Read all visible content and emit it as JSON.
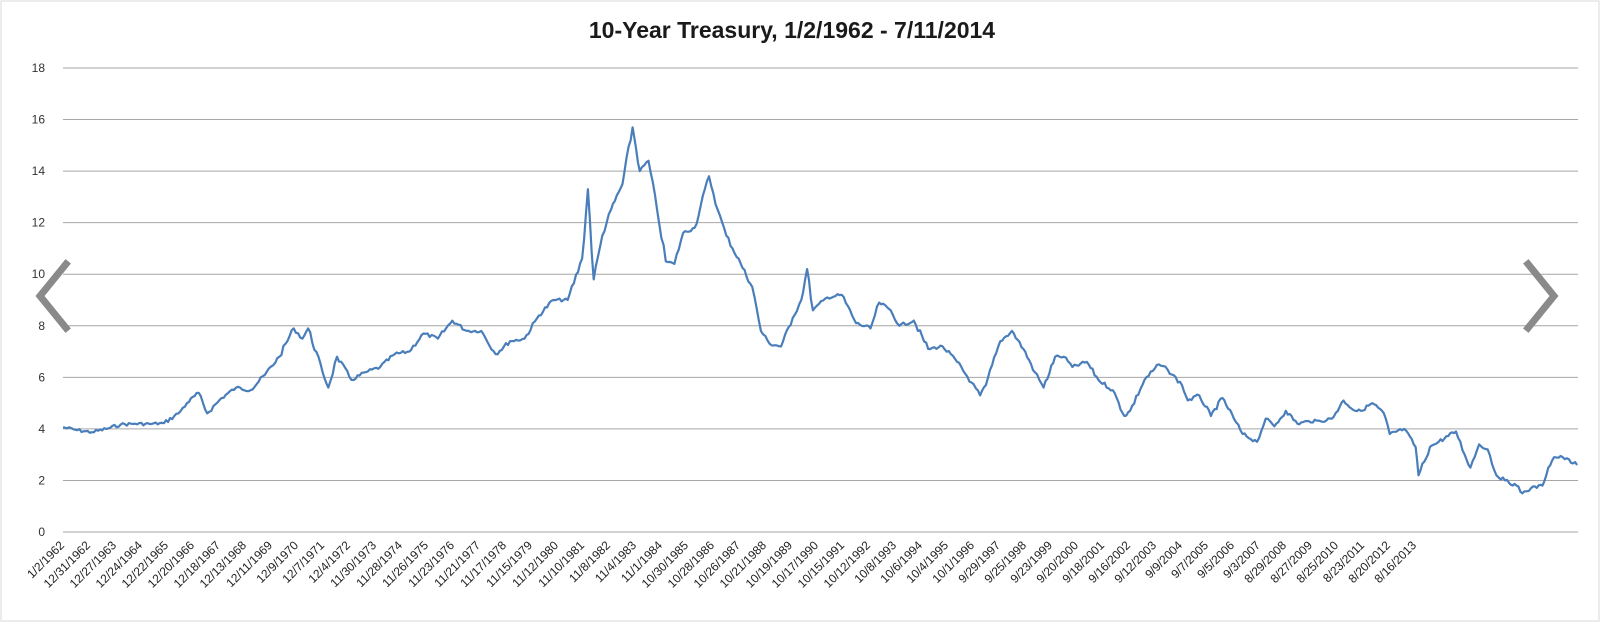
{
  "chart_data": {
    "type": "line",
    "title": "10-Year Treasury, 1/2/1962 - 7/11/2014",
    "xlabel": "",
    "ylabel": "",
    "ylim": [
      0,
      18
    ],
    "yticks": [
      0,
      2,
      4,
      6,
      8,
      10,
      12,
      14,
      16,
      18
    ],
    "grid": true,
    "legend": "none",
    "x_tick_labels": [
      "1/2/1962",
      "12/31/1962",
      "12/27/1963",
      "12/24/1964",
      "12/22/1965",
      "12/20/1966",
      "12/18/1967",
      "12/13/1968",
      "12/11/1969",
      "12/9/1970",
      "12/7/1971",
      "12/4/1972",
      "11/30/1973",
      "11/28/1974",
      "11/26/1975",
      "11/23/1976",
      "11/21/1977",
      "11/17/1978",
      "11/15/1979",
      "11/12/1980",
      "11/10/1981",
      "11/8/1982",
      "11/4/1983",
      "11/1/1984",
      "10/30/1985",
      "10/28/1986",
      "10/26/1987",
      "10/21/1988",
      "10/19/1989",
      "10/17/1990",
      "10/15/1991",
      "10/12/1992",
      "10/8/1993",
      "10/6/1994",
      "10/4/1995",
      "10/1/1996",
      "9/29/1997",
      "9/25/1998",
      "9/23/1999",
      "9/20/2000",
      "9/18/2001",
      "9/16/2002",
      "9/12/2003",
      "9/9/2004",
      "9/7/2005",
      "9/5/2006",
      "9/3/2007",
      "8/29/2008",
      "8/27/2009",
      "8/25/2010",
      "8/23/2011",
      "8/20/2012",
      "8/16/2013"
    ],
    "series": [
      {
        "color": "#4a7ebb",
        "points": [
          [
            "1962.0",
            4.06
          ],
          [
            "1962.5",
            3.95
          ],
          [
            "1963.0",
            3.87
          ],
          [
            "1963.5",
            4.0
          ],
          [
            "1964.0",
            4.17
          ],
          [
            "1964.5",
            4.2
          ],
          [
            "1965.0",
            4.19
          ],
          [
            "1965.5",
            4.22
          ],
          [
            "1966.0",
            4.6
          ],
          [
            "1966.3",
            5.0
          ],
          [
            "1966.7",
            5.4
          ],
          [
            "1967.0",
            4.6
          ],
          [
            "1967.5",
            5.2
          ],
          [
            "1968.0",
            5.6
          ],
          [
            "1968.5",
            5.5
          ],
          [
            "1969.0",
            6.1
          ],
          [
            "1969.5",
            6.8
          ],
          [
            "1970.0",
            7.9
          ],
          [
            "1970.3",
            7.5
          ],
          [
            "1970.5",
            7.9
          ],
          [
            "1971.0",
            6.2
          ],
          [
            "1971.2",
            5.6
          ],
          [
            "1971.5",
            6.8
          ],
          [
            "1972.0",
            5.9
          ],
          [
            "1972.5",
            6.2
          ],
          [
            "1973.0",
            6.4
          ],
          [
            "1973.5",
            6.9
          ],
          [
            "1974.0",
            7.0
          ],
          [
            "1974.5",
            7.7
          ],
          [
            "1975.0",
            7.5
          ],
          [
            "1975.5",
            8.2
          ],
          [
            "1976.0",
            7.8
          ],
          [
            "1976.5",
            7.8
          ],
          [
            "1977.0",
            6.9
          ],
          [
            "1977.5",
            7.4
          ],
          [
            "1978.0",
            7.5
          ],
          [
            "1978.5",
            8.4
          ],
          [
            "1979.0",
            9.0
          ],
          [
            "1979.5",
            9.0
          ],
          [
            "1980.0",
            10.6
          ],
          [
            "1980.2",
            13.3
          ],
          [
            "1980.4",
            9.8
          ],
          [
            "1980.7",
            11.5
          ],
          [
            "1981.0",
            12.5
          ],
          [
            "1981.4",
            13.5
          ],
          [
            "1981.75",
            15.7
          ],
          [
            "1982.0",
            14.0
          ],
          [
            "1982.3",
            14.4
          ],
          [
            "1982.6",
            12.5
          ],
          [
            "1982.9",
            10.5
          ],
          [
            "1983.2",
            10.4
          ],
          [
            "1983.5",
            11.6
          ],
          [
            "1983.9",
            11.8
          ],
          [
            "1984.4",
            13.8
          ],
          [
            "1984.7",
            12.5
          ],
          [
            "1985.0",
            11.5
          ],
          [
            "1985.5",
            10.4
          ],
          [
            "1985.9",
            9.5
          ],
          [
            "1986.2",
            7.8
          ],
          [
            "1986.5",
            7.3
          ],
          [
            "1986.9",
            7.2
          ],
          [
            "1987.3",
            8.3
          ],
          [
            "1987.6",
            9.0
          ],
          [
            "1987.8",
            10.2
          ],
          [
            "1988.0",
            8.6
          ],
          [
            "1988.5",
            9.1
          ],
          [
            "1989.0",
            9.2
          ],
          [
            "1989.5",
            8.1
          ],
          [
            "1990.0",
            7.9
          ],
          [
            "1990.3",
            8.9
          ],
          [
            "1990.7",
            8.6
          ],
          [
            "1991.0",
            8.0
          ],
          [
            "1991.5",
            8.2
          ],
          [
            "1992.0",
            7.1
          ],
          [
            "1992.5",
            7.2
          ],
          [
            "1993.0",
            6.6
          ],
          [
            "1993.5",
            5.8
          ],
          [
            "1993.8",
            5.3
          ],
          [
            "1994.0",
            5.7
          ],
          [
            "1994.5",
            7.4
          ],
          [
            "1994.9",
            7.8
          ],
          [
            "1995.3",
            7.1
          ],
          [
            "1995.7",
            6.2
          ],
          [
            "1996.0",
            5.6
          ],
          [
            "1996.4",
            6.8
          ],
          [
            "1996.7",
            6.8
          ],
          [
            "1997.0",
            6.4
          ],
          [
            "1997.5",
            6.6
          ],
          [
            "1997.9",
            5.9
          ],
          [
            "1998.4",
            5.5
          ],
          [
            "1998.8",
            4.5
          ],
          [
            "1999.0",
            4.7
          ],
          [
            "1999.5",
            5.9
          ],
          [
            "2000.0",
            6.5
          ],
          [
            "2000.3",
            6.3
          ],
          [
            "2000.8",
            5.7
          ],
          [
            "2001.0",
            5.1
          ],
          [
            "2001.4",
            5.3
          ],
          [
            "2001.8",
            4.5
          ],
          [
            "2002.2",
            5.2
          ],
          [
            "2002.6",
            4.4
          ],
          [
            "2002.9",
            3.8
          ],
          [
            "2003.4",
            3.5
          ],
          [
            "2003.7",
            4.4
          ],
          [
            "2004.0",
            4.1
          ],
          [
            "2004.4",
            4.7
          ],
          [
            "2004.8",
            4.2
          ],
          [
            "2005.2",
            4.3
          ],
          [
            "2005.6",
            4.3
          ],
          [
            "2006.0",
            4.4
          ],
          [
            "2006.4",
            5.1
          ],
          [
            "2006.8",
            4.7
          ],
          [
            "2007.0",
            4.7
          ],
          [
            "2007.4",
            5.0
          ],
          [
            "2007.8",
            4.6
          ],
          [
            "2008.0",
            3.8
          ],
          [
            "2008.5",
            4.0
          ],
          [
            "2008.9",
            3.3
          ],
          [
            "2009.0",
            2.2
          ],
          [
            "2009.4",
            3.3
          ],
          [
            "2009.7",
            3.5
          ],
          [
            "2010.3",
            3.9
          ],
          [
            "2010.6",
            3.0
          ],
          [
            "2010.8",
            2.5
          ],
          [
            "2011.1",
            3.4
          ],
          [
            "2011.4",
            3.2
          ],
          [
            "2011.7",
            2.2
          ],
          [
            "2012.0",
            2.0
          ],
          [
            "2012.4",
            1.8
          ],
          [
            "2012.6",
            1.5
          ],
          [
            "2012.9",
            1.7
          ],
          [
            "2013.3",
            1.8
          ],
          [
            "2013.5",
            2.5
          ],
          [
            "2013.7",
            2.9
          ],
          [
            "2014.0",
            2.9
          ],
          [
            "2014.5",
            2.6
          ]
        ]
      }
    ]
  },
  "nav": {
    "prev_icon": "chevron-left-icon",
    "next_icon": "chevron-right-icon"
  }
}
